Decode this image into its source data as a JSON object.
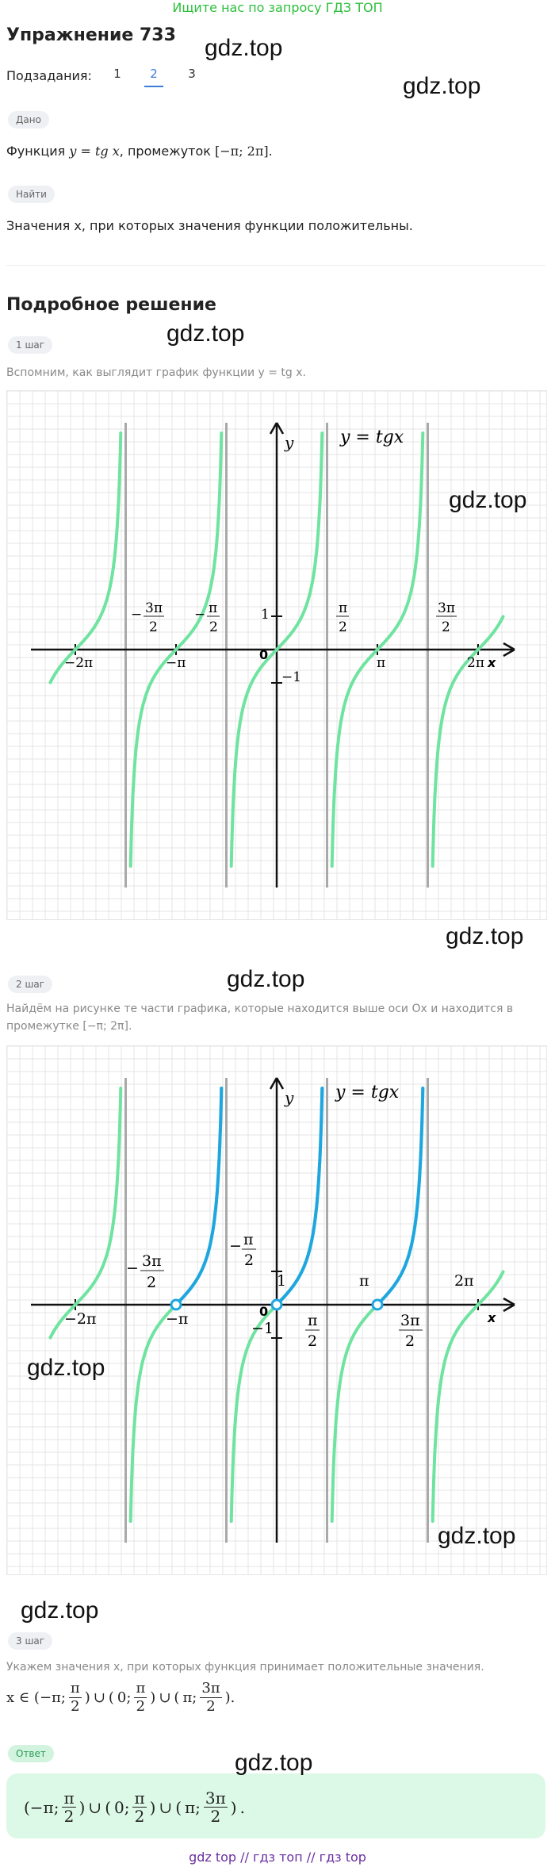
{
  "banner": "Ищите нас по запросу ГДЗ ТОП",
  "title": "Упражнение 733",
  "subtasks": {
    "label": "Подзадания:",
    "items": [
      "1",
      "2",
      "3"
    ],
    "active": "2"
  },
  "given": {
    "tag": "Дано",
    "text_prefix": "Функция",
    "func": "y = tg x",
    "text_mid": ", промежуток",
    "interval": "[−π;  2π]",
    "text_end": "."
  },
  "find": {
    "tag": "Найти",
    "text": "Значения x, при которых значения функции положительны."
  },
  "solution_title": "Подробное решение",
  "step1": {
    "tag": "1 шаг",
    "text": "Вспомним, как выглядит график функции y = tg x."
  },
  "step2": {
    "tag": "2 шаг",
    "text_line1": "Найдём на рисунке те части графика, которые находится выше оси Ox и находится в",
    "text_line2": "промежутке [−π;  2π]."
  },
  "step3": {
    "tag": "3 шаг",
    "text": "Укажем значения x, при которых функция принимает положительные значения.",
    "formula_prefix": "x ∈ (−π;",
    "pi": "π",
    "two": "2",
    "three_pi": "3π",
    "zero": "0;",
    "pi_semi": "π;",
    "union": "∪"
  },
  "answer": {
    "tag": "Ответ",
    "lparen": "(−π;",
    "zero": "0;",
    "pi_semi": "π;",
    "pi": "π",
    "two": "2",
    "three_pi": "3π",
    "union": "∪",
    "end": "."
  },
  "graph1": {
    "func_label": "y = tgx",
    "y_axis": "y",
    "x_axis": "x",
    "origin": "0",
    "tick_1": "1",
    "tick_m1": "−1",
    "labels": {
      "m2pi": "−2π",
      "mpi": "−π",
      "pi": "π",
      "2pi": "2π",
      "m3pi_num": "3π",
      "mpi_num": "π",
      "den": "2",
      "pi_num": "π",
      "3pi_num": "3π",
      "minus": "−"
    }
  },
  "graph2": {
    "func_label": "y = tgx",
    "y_axis": "y",
    "x_axis": "x",
    "origin": "0",
    "tick_1": "1",
    "tick_m1": "−1",
    "labels": {
      "m2pi": "−2π",
      "mpi": "−π",
      "pi": "π",
      "2pi": "2π",
      "m3pi_num": "3π",
      "mpi_num": "π",
      "den": "2",
      "pi_num": "π",
      "3pi_num": "3π",
      "minus": "−"
    }
  },
  "colors": {
    "curve": "#6fe3a0",
    "highlight": "#1fa6e0",
    "asymptote": "#a9a9a9",
    "grid": "#e4e4e4",
    "accent": "#3b7dd8",
    "banner": "#2dbf3c"
  },
  "watermarks": [
    "gdz.top",
    "gdz.top",
    "gdz.top",
    "gdz.top",
    "gdz.top",
    "gdz.top",
    "gdz.top",
    "gdz.top",
    "gdz.top",
    "gdz.top"
  ],
  "footer": {
    "l1": "gdz top",
    "sep": "//",
    "l2": "гдз топ",
    "l3": "гдз top"
  }
}
